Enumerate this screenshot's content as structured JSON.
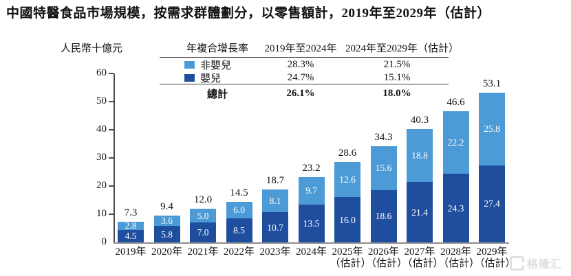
{
  "title": "中國特醫食品市場規模，按需求群體劃分，以零售額計，2019年至2029年（估計）",
  "y_axis_unit": "人民幣十億元",
  "colors": {
    "non_infant": "#4D9BD6",
    "infant": "#1F4E9F",
    "axis": "#4a4a4a",
    "baseline": "#8e8e8e"
  },
  "cagr_table": {
    "headers": [
      "年複合增長率",
      "2019年至2024年",
      "2024年至2029年（估計）"
    ],
    "rows": [
      {
        "label": "非嬰兒",
        "swatch": "#4D9BD6",
        "c1": "28.3%",
        "c2": "21.5%"
      },
      {
        "label": "嬰兒",
        "swatch": "#1F4E9F",
        "c1": "24.7%",
        "c2": "15.1%"
      }
    ],
    "total": {
      "label": "總計",
      "c1": "26.1%",
      "c2": "18.0%"
    }
  },
  "chart_data": {
    "type": "bar",
    "stacked": true,
    "title": "中國特醫食品市場規模，按需求群體劃分，以零售額計，2019年至2029年（估計）",
    "ylabel": "人民幣十億元",
    "ylim": [
      0,
      60
    ],
    "yticks": [
      0,
      10,
      20,
      30,
      40,
      50,
      60
    ],
    "grid": false,
    "legend_position": "top-table",
    "categories": [
      "2019年",
      "2020年",
      "2021年",
      "2022年",
      "2023年",
      "2024年",
      "2025年（估計）",
      "2026年（估計）",
      "2027年（估計）",
      "2028年（估計）",
      "2029年（估計）"
    ],
    "x_labels": [
      {
        "year": "2019年",
        "note": ""
      },
      {
        "year": "2020年",
        "note": ""
      },
      {
        "year": "2021年",
        "note": ""
      },
      {
        "year": "2022年",
        "note": ""
      },
      {
        "year": "2023年",
        "note": ""
      },
      {
        "year": "2024年",
        "note": ""
      },
      {
        "year": "2025年",
        "note": "（估計）"
      },
      {
        "year": "2026年",
        "note": "（估計）"
      },
      {
        "year": "2027年",
        "note": "（估計）"
      },
      {
        "year": "2028年",
        "note": "（估計）"
      },
      {
        "year": "2029年",
        "note": "（估計）"
      }
    ],
    "series": [
      {
        "name": "非嬰兒",
        "color": "#4D9BD6",
        "values": [
          2.8,
          3.6,
          5.0,
          6.0,
          8.1,
          9.7,
          12.6,
          15.6,
          18.8,
          22.2,
          25.8
        ]
      },
      {
        "name": "嬰兒",
        "color": "#1F4E9F",
        "values": [
          4.5,
          5.8,
          7.0,
          8.5,
          10.7,
          13.5,
          16.0,
          18.6,
          21.4,
          24.3,
          27.4
        ]
      }
    ],
    "totals": [
      7.3,
      9.4,
      12.0,
      14.5,
      18.7,
      23.2,
      28.6,
      34.3,
      40.3,
      46.6,
      53.1
    ]
  },
  "watermark": {
    "text": "格隆汇",
    "icon": "gelonghui-logo"
  }
}
